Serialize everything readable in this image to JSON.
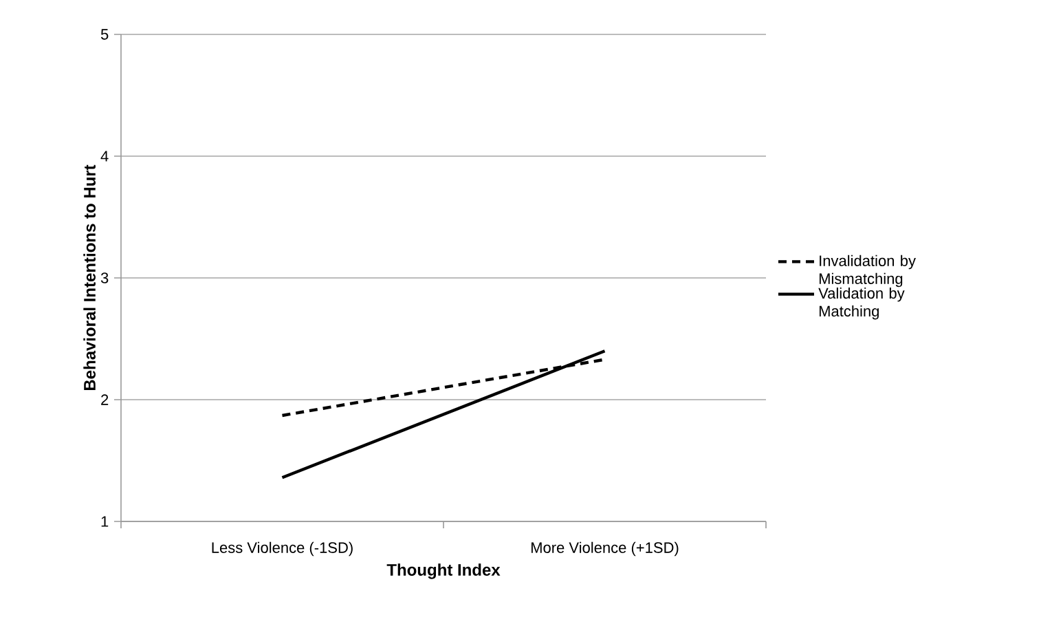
{
  "chart_data": {
    "type": "line",
    "xlabel": "Thought Index",
    "ylabel": "Behavioral Intentions to Hurt",
    "categories": [
      "Less Violence (-1SD)",
      "More Violence (+1SD)"
    ],
    "series": [
      {
        "name": "Invalidation by Mismatching",
        "color": "#000000",
        "line_style": "dashed",
        "values": [
          1.87,
          2.33
        ]
      },
      {
        "name": "Validation by Matching",
        "color": "#000000",
        "line_style": "solid",
        "values": [
          1.36,
          2.4
        ]
      }
    ],
    "ylim": [
      1,
      5
    ],
    "yticks": [
      1,
      2,
      3,
      4,
      5
    ],
    "grid": "y",
    "legend": "right"
  }
}
